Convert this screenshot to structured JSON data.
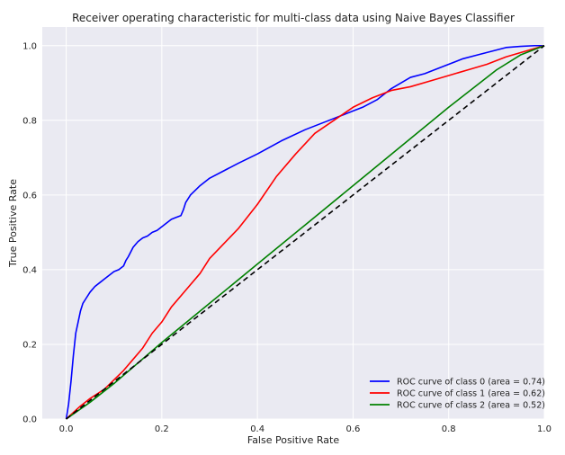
{
  "chart_data": {
    "type": "line",
    "title": "Receiver operating characteristic for multi-class data using Naive Bayes Classifier",
    "xlabel": "False Positive Rate",
    "ylabel": "True Positive Rate",
    "xlim": [
      -0.05,
      1.0
    ],
    "ylim": [
      0.0,
      1.05
    ],
    "xticks": [
      0.0,
      0.2,
      0.4,
      0.6,
      0.8,
      1.0
    ],
    "yticks": [
      0.0,
      0.2,
      0.4,
      0.6,
      0.8,
      1.0
    ],
    "xtick_labels": [
      "0.0",
      "0.2",
      "0.4",
      "0.6",
      "0.8",
      "1.0"
    ],
    "ytick_labels": [
      "0.0",
      "0.2",
      "0.4",
      "0.6",
      "0.8",
      "1.0"
    ],
    "grid": true,
    "legend_position": "bottom-right",
    "background": "#eaeaf2",
    "series": [
      {
        "name": "ROC curve of class 0 (area = 0.74)",
        "color": "#0000ff",
        "x": [
          0.0,
          0.005,
          0.01,
          0.015,
          0.02,
          0.025,
          0.03,
          0.035,
          0.04,
          0.05,
          0.06,
          0.07,
          0.08,
          0.09,
          0.1,
          0.11,
          0.12,
          0.125,
          0.13,
          0.14,
          0.15,
          0.16,
          0.17,
          0.18,
          0.19,
          0.2,
          0.21,
          0.22,
          0.23,
          0.24,
          0.245,
          0.25,
          0.26,
          0.28,
          0.3,
          0.33,
          0.36,
          0.4,
          0.45,
          0.5,
          0.55,
          0.58,
          0.6,
          0.62,
          0.65,
          0.68,
          0.7,
          0.72,
          0.75,
          0.78,
          0.8,
          0.83,
          0.86,
          0.89,
          0.92,
          0.95,
          0.98,
          1.0
        ],
        "y": [
          0.0,
          0.04,
          0.1,
          0.17,
          0.23,
          0.26,
          0.29,
          0.31,
          0.32,
          0.34,
          0.355,
          0.365,
          0.375,
          0.385,
          0.395,
          0.4,
          0.41,
          0.425,
          0.435,
          0.46,
          0.475,
          0.485,
          0.49,
          0.5,
          0.505,
          0.515,
          0.525,
          0.535,
          0.54,
          0.545,
          0.56,
          0.58,
          0.6,
          0.625,
          0.645,
          0.665,
          0.685,
          0.71,
          0.745,
          0.775,
          0.8,
          0.815,
          0.825,
          0.835,
          0.855,
          0.885,
          0.9,
          0.915,
          0.925,
          0.94,
          0.95,
          0.965,
          0.975,
          0.985,
          0.995,
          0.998,
          1.0,
          1.0
        ]
      },
      {
        "name": "ROC curve of class 1 (area = 0.62)",
        "color": "#ff0000",
        "x": [
          0.0,
          0.03,
          0.05,
          0.08,
          0.1,
          0.12,
          0.14,
          0.16,
          0.18,
          0.2,
          0.22,
          0.25,
          0.28,
          0.3,
          0.33,
          0.36,
          0.4,
          0.44,
          0.48,
          0.52,
          0.56,
          0.6,
          0.64,
          0.68,
          0.72,
          0.76,
          0.8,
          0.84,
          0.88,
          0.92,
          0.96,
          1.0
        ],
        "y": [
          0.0,
          0.035,
          0.055,
          0.08,
          0.105,
          0.13,
          0.16,
          0.19,
          0.23,
          0.26,
          0.3,
          0.345,
          0.39,
          0.43,
          0.47,
          0.51,
          0.575,
          0.65,
          0.71,
          0.765,
          0.8,
          0.835,
          0.86,
          0.88,
          0.89,
          0.905,
          0.92,
          0.935,
          0.95,
          0.97,
          0.985,
          1.0
        ]
      },
      {
        "name": "ROC curve of class 2 (area = 0.52)",
        "color": "#008000",
        "x": [
          0.0,
          0.05,
          0.1,
          0.2,
          0.3,
          0.4,
          0.5,
          0.6,
          0.7,
          0.8,
          0.9,
          0.95,
          1.0
        ],
        "y": [
          0.0,
          0.045,
          0.095,
          0.205,
          0.31,
          0.415,
          0.52,
          0.625,
          0.73,
          0.835,
          0.935,
          0.975,
          1.0
        ]
      }
    ],
    "reference_line": {
      "color": "#000000",
      "style": "dashed",
      "x": [
        0.0,
        1.0
      ],
      "y": [
        0.0,
        1.0
      ]
    }
  }
}
